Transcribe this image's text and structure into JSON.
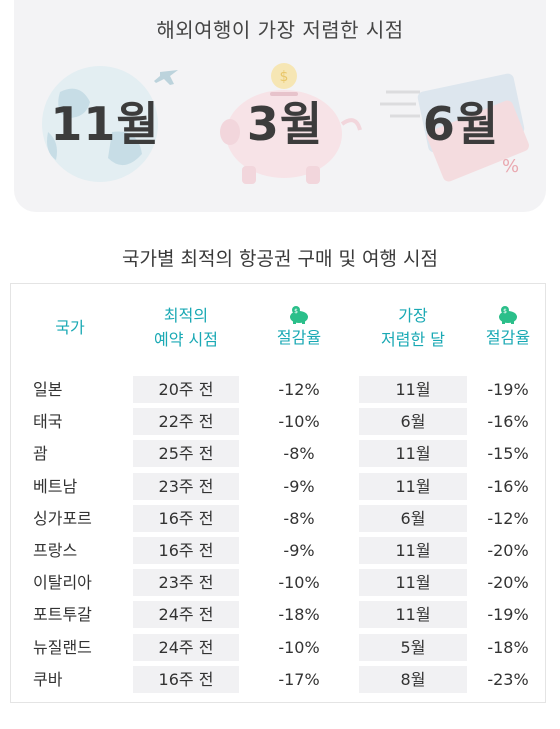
{
  "top": {
    "title": "해외여행이 가장 저렴한 시점",
    "months": [
      "11월",
      "3월",
      "6월"
    ]
  },
  "icons": [
    "globe-plane-icon",
    "piggy-bank-icon",
    "ticket-icon"
  ],
  "table": {
    "title": "국가별 최적의 항공권 구매 및 여행 시점",
    "headers": {
      "country": "국가",
      "best_time_1": "최적의",
      "best_time_2": "예약 시점",
      "saving_1": "절감율",
      "cheapest_1": "가장",
      "cheapest_2": "저렴한 달",
      "saving_2": "절감율"
    },
    "rows": [
      {
        "country": "일본",
        "book": "20주 전",
        "save1": "-12%",
        "month": "11월",
        "save2": "-19%"
      },
      {
        "country": "태국",
        "book": "22주 전",
        "save1": "-10%",
        "month": "6월",
        "save2": "-16%"
      },
      {
        "country": "괌",
        "book": "25주 전",
        "save1": "-8%",
        "month": "11월",
        "save2": "-15%"
      },
      {
        "country": "베트남",
        "book": "23주 전",
        "save1": "-9%",
        "month": "11월",
        "save2": "-16%"
      },
      {
        "country": "싱가포르",
        "book": "16주 전",
        "save1": "-8%",
        "month": "6월",
        "save2": "-12%"
      },
      {
        "country": "프랑스",
        "book": "16주 전",
        "save1": "-9%",
        "month": "11월",
        "save2": "-20%"
      },
      {
        "country": "이탈리아",
        "book": "23주 전",
        "save1": "-10%",
        "month": "11월",
        "save2": "-20%"
      },
      {
        "country": "포트투갈",
        "book": "24주 전",
        "save1": "-18%",
        "month": "11월",
        "save2": "-19%"
      },
      {
        "country": "뉴질랜드",
        "book": "24주 전",
        "save1": "-10%",
        "month": "5월",
        "save2": "-18%"
      },
      {
        "country": "쿠바",
        "book": "16주 전",
        "save1": "-17%",
        "month": "8월",
        "save2": "-23%"
      }
    ]
  },
  "colors": {
    "accent": "#1aa9b4",
    "pig_green": "#2bbf8a",
    "shade": "#f1f1f3"
  }
}
